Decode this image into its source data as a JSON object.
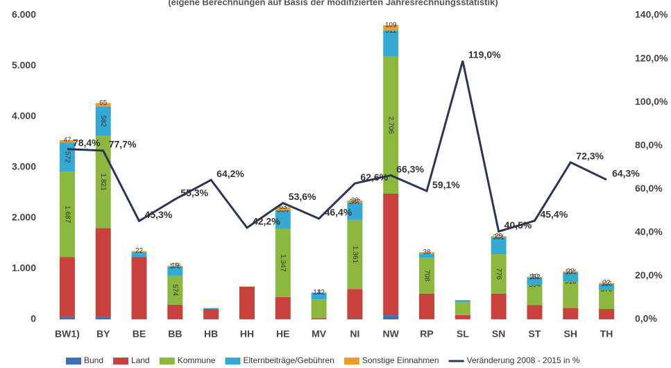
{
  "chart_data": {
    "type": "stacked-bar-line",
    "subtitle": "(eigene Berechnungen auf Basis der modifizierten Jahresrechnungsstatistik)",
    "categories": [
      "BW1)",
      "BY",
      "BE",
      "BB",
      "HB",
      "HH",
      "HE",
      "MV",
      "NI",
      "NW",
      "RP",
      "SL",
      "SN",
      "ST",
      "SH",
      "TH"
    ],
    "series": [
      {
        "name": "Bund",
        "color": "#3b6fb6",
        "values": [
          50,
          50,
          10,
          10,
          5,
          5,
          10,
          5,
          20,
          80,
          10,
          5,
          10,
          5,
          5,
          5
        ]
      },
      {
        "name": "Land",
        "color": "#c8413c",
        "values": [
          1180,
          1750,
          1216,
          280,
          200,
          640,
          430,
          20,
          580,
          2400,
          500,
          80,
          500,
          280,
          220,
          200
        ]
      },
      {
        "name": "Kommune",
        "color": "#8cb83f",
        "values": [
          1687,
          1821,
          0,
          574,
          0,
          0,
          1347,
          370,
          1361,
          2706,
          708,
          254,
          776,
          394,
          516,
          376
        ],
        "value_labels": [
          "1.687",
          "1.821",
          null,
          "574",
          null,
          null,
          "1.347",
          null,
          "1.361",
          "2.706",
          "708",
          null,
          "776",
          "394",
          "516",
          "376"
        ]
      },
      {
        "name": "Elternbeiträge/Gebühren",
        "color": "#36a9d3",
        "values": [
          572,
          582,
          100,
          176,
          17,
          0,
          364,
          132,
          347,
          511,
          70,
          40,
          331,
          152,
          184,
          116
        ],
        "value_labels": [
          "572",
          "582",
          null,
          "176",
          null,
          null,
          "364",
          "132",
          "347",
          "511",
          null,
          null,
          "331",
          "152",
          "184",
          "116"
        ]
      },
      {
        "name": "Sonstige Einnahmen",
        "color": "#f39a2d",
        "values": [
          47,
          65,
          22,
          19,
          5,
          5,
          63,
          4,
          38,
          109,
          38,
          5,
          25,
          10,
          22,
          22
        ],
        "value_labels": [
          "47",
          "65",
          "22",
          "19",
          null,
          null,
          "63",
          "4",
          "38",
          "109",
          "38",
          null,
          "25",
          "10",
          "22",
          "22"
        ]
      },
      {
        "name": "Veränderung 2008 - 2015 in %",
        "color": "#2b3459",
        "axis": "y2",
        "values": [
          78.4,
          77.7,
          45.3,
          55.3,
          64.2,
          42.2,
          53.6,
          46.4,
          62.6,
          66.3,
          59.1,
          119.0,
          40.5,
          45.4,
          72.3,
          64.3
        ],
        "value_labels": [
          "78,4%",
          "77,7%",
          "45,3%",
          "55,3%",
          "64,2%",
          "42,2%",
          "53,6%",
          "46,4%",
          "62,6%",
          "66,3%",
          "59,1%",
          "119,0%",
          "40,5%",
          "45,4%",
          "72,3%",
          "64,3%"
        ]
      }
    ],
    "ylim": [
      0,
      6000
    ],
    "yticks": [
      {
        "value": 0,
        "label": "0"
      },
      {
        "value": 1000,
        "label": "1.000"
      },
      {
        "value": 2000,
        "label": "2.000"
      },
      {
        "value": 3000,
        "label": "3.000"
      },
      {
        "value": 4000,
        "label": "4.000"
      },
      {
        "value": 5000,
        "label": "5.000"
      },
      {
        "value": 6000,
        "label": "6.000"
      }
    ],
    "y2lim": [
      0,
      140
    ],
    "y2ticks": [
      {
        "value": 0,
        "label": "0,0%"
      },
      {
        "value": 20,
        "label": "20,0%"
      },
      {
        "value": 40,
        "label": "40,0%"
      },
      {
        "value": 60,
        "label": "60,0%"
      },
      {
        "value": 80,
        "label": "80,0%"
      },
      {
        "value": 100,
        "label": "100,0%"
      },
      {
        "value": 120,
        "label": "120,0%"
      },
      {
        "value": 140,
        "label": "140,0%"
      }
    ]
  }
}
